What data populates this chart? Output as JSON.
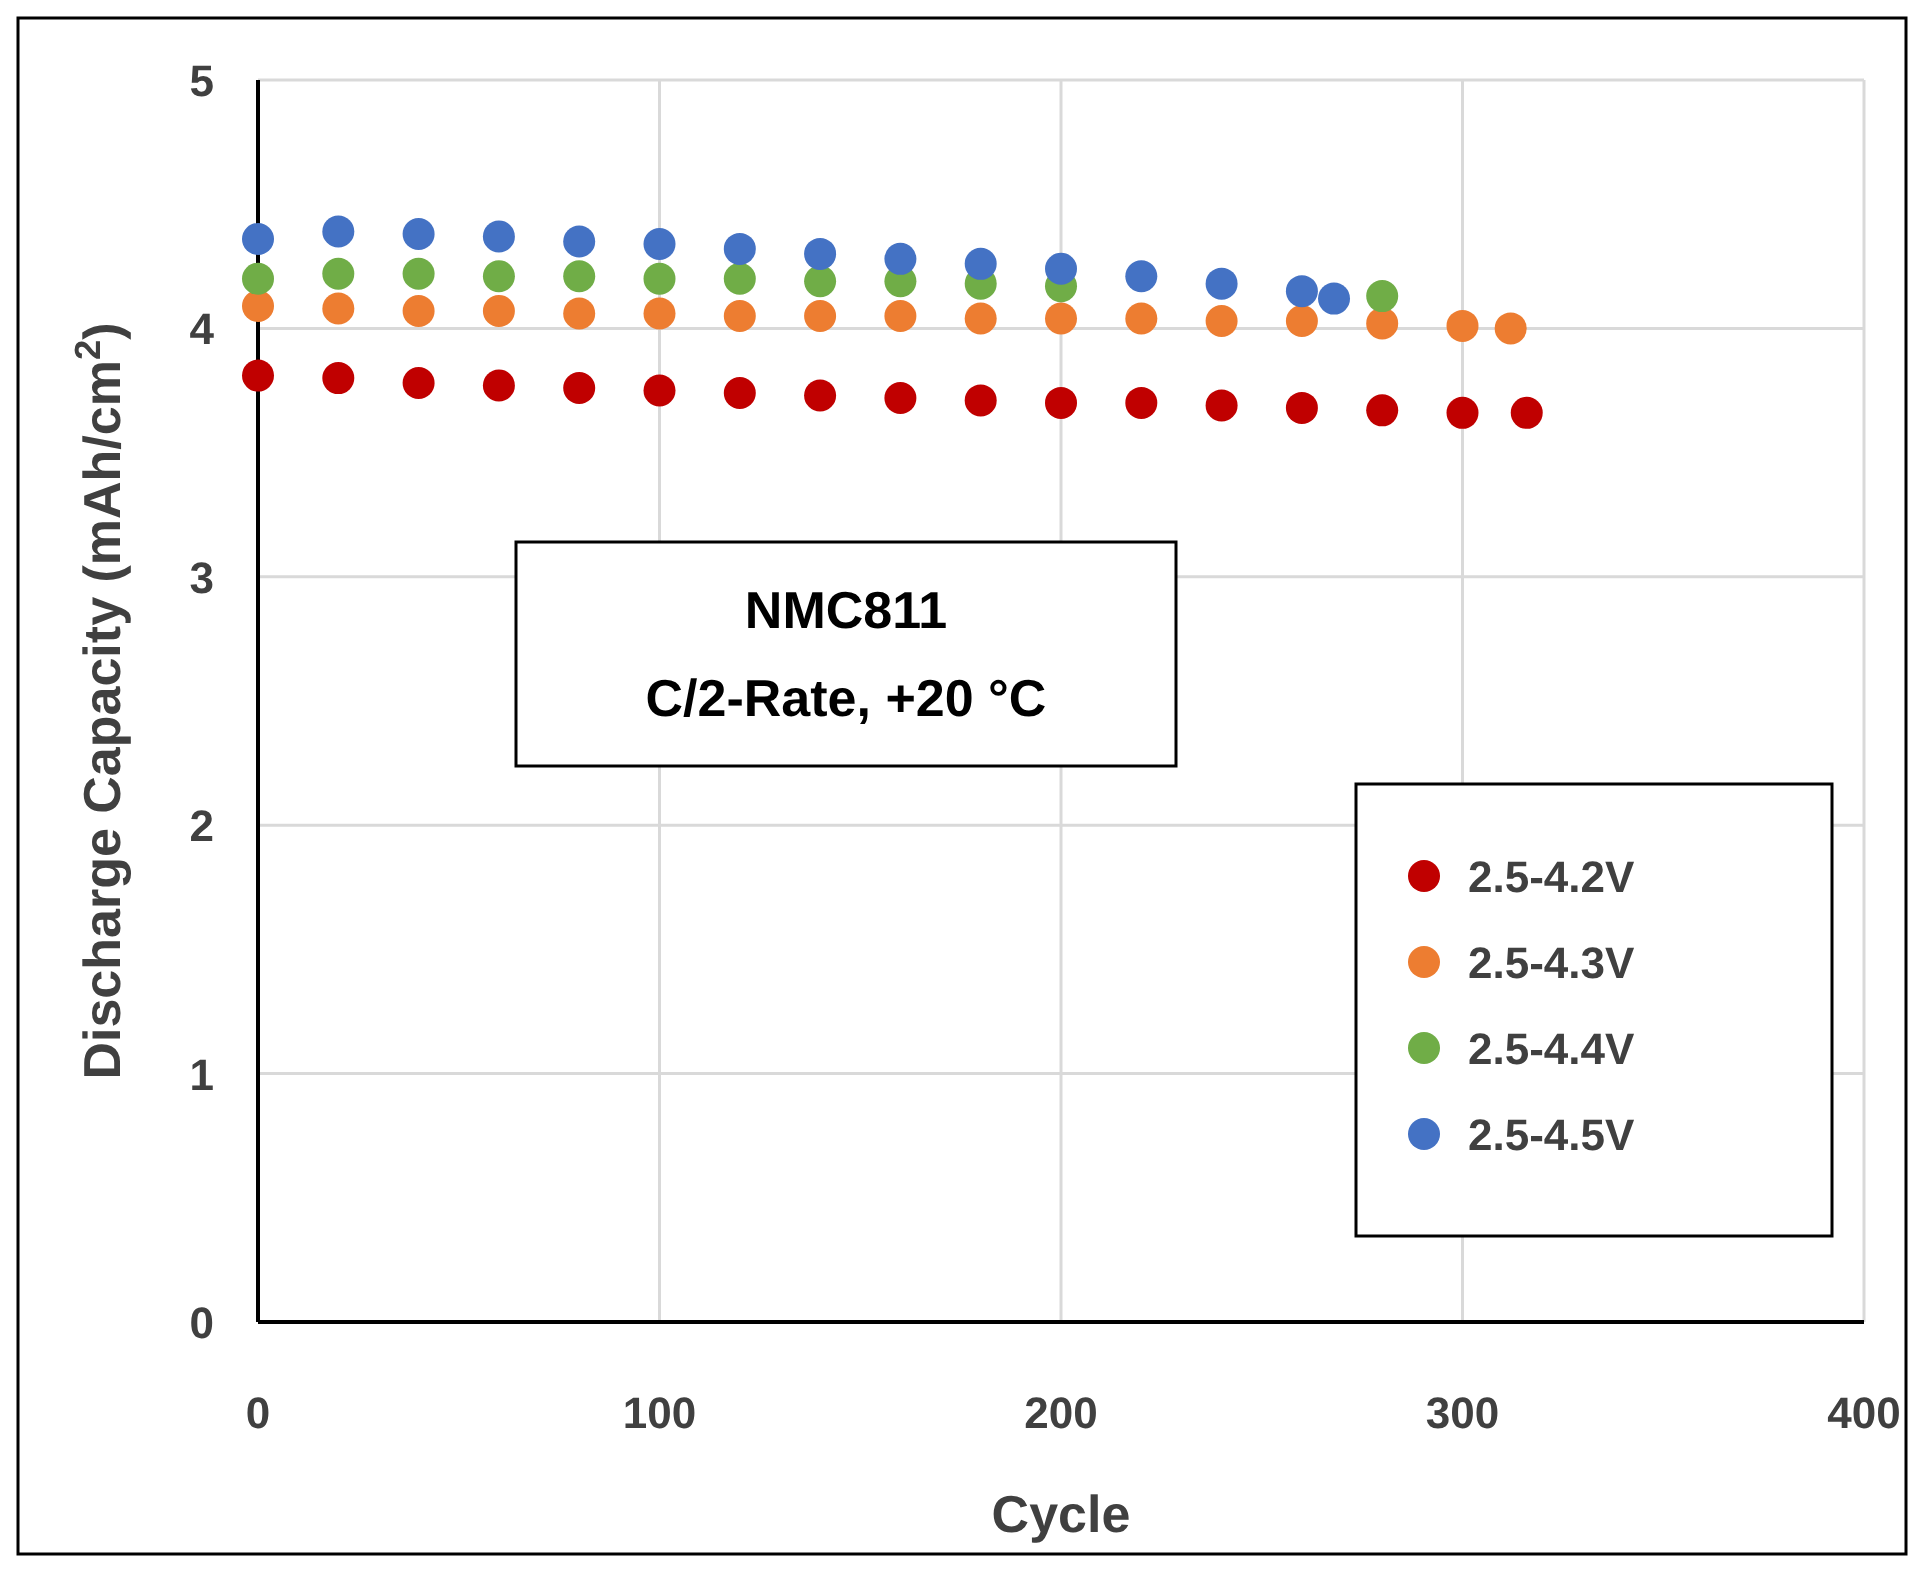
{
  "chart_data": {
    "type": "scatter",
    "xlabel": "Cycle",
    "ylabel": "Discharge Capacity (mAh/cm$^{2}$)",
    "annotations": [
      "NMC811",
      "C/2-Rate, +20 °C"
    ],
    "xlim": [
      0,
      400
    ],
    "xticks": [
      0,
      100,
      200,
      300,
      400
    ],
    "ylim": [
      0,
      5
    ],
    "yticks": [
      0,
      1,
      2,
      3,
      4,
      5
    ],
    "grid": true,
    "legend": "bottom right",
    "marker": "circle",
    "series": [
      {
        "name": "2.5-4.2V",
        "color": "#c00000",
        "x": [
          0,
          20,
          40,
          60,
          80,
          100,
          120,
          140,
          160,
          180,
          200,
          220,
          240,
          260,
          280,
          300,
          316
        ],
        "values": [
          3.81,
          3.8,
          3.78,
          3.77,
          3.76,
          3.75,
          3.74,
          3.73,
          3.72,
          3.71,
          3.7,
          3.7,
          3.69,
          3.68,
          3.67,
          3.66,
          3.66
        ]
      },
      {
        "name": "2.5-4.3V",
        "color": "#ed7d31",
        "x": [
          0,
          20,
          40,
          60,
          80,
          100,
          120,
          140,
          160,
          180,
          200,
          220,
          240,
          260,
          280,
          300,
          312
        ],
        "values": [
          4.09,
          4.08,
          4.07,
          4.07,
          4.06,
          4.06,
          4.05,
          4.05,
          4.05,
          4.04,
          4.04,
          4.04,
          4.03,
          4.03,
          4.02,
          4.01,
          4.0
        ]
      },
      {
        "name": "2.5-4.4V",
        "color": "#70ad47",
        "x": [
          0,
          20,
          40,
          60,
          80,
          100,
          120,
          140,
          160,
          180,
          200,
          280
        ],
        "values": [
          4.2,
          4.22,
          4.22,
          4.21,
          4.21,
          4.2,
          4.2,
          4.19,
          4.19,
          4.18,
          4.17,
          4.13
        ]
      },
      {
        "name": "2.5-4.5V",
        "color": "#4472c4",
        "x": [
          0,
          20,
          40,
          60,
          80,
          100,
          120,
          140,
          160,
          180,
          200,
          220,
          240,
          260,
          268
        ],
        "values": [
          4.36,
          4.39,
          4.38,
          4.37,
          4.35,
          4.34,
          4.32,
          4.3,
          4.28,
          4.26,
          4.24,
          4.21,
          4.18,
          4.15,
          4.12
        ]
      }
    ]
  }
}
